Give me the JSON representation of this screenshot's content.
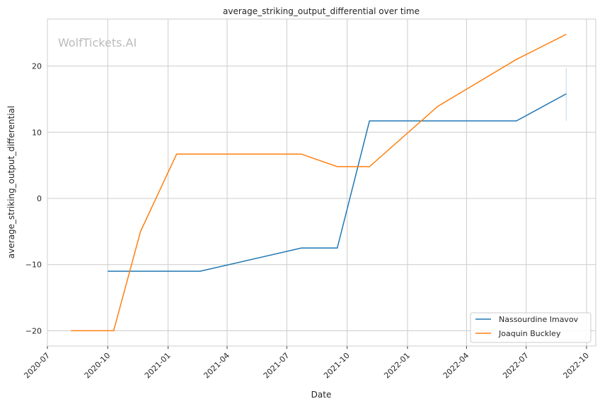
{
  "chart_data": {
    "type": "line",
    "title": "average_striking_output_differential over time",
    "xlabel": "Date",
    "ylabel": "average_striking_output_differential",
    "watermark": "WolfTickets.AI",
    "ylim": [
      -22.3,
      27.1
    ],
    "xlim": [
      "2020-07-01",
      "2022-10-15"
    ],
    "yticks": [
      -20,
      -10,
      0,
      10,
      20
    ],
    "xticks": [
      "2020-07",
      "2020-10",
      "2021-01",
      "2021-04",
      "2021-07",
      "2021-10",
      "2022-01",
      "2022-04",
      "2022-07",
      "2022-10"
    ],
    "grid": true,
    "legend_position": "bottom-right",
    "series": [
      {
        "name": "Nassourdine Imavov",
        "color": "#1f77b4",
        "x": [
          "2020-10-01",
          "2021-02-19",
          "2021-07-23",
          "2021-09-16",
          "2021-11-04",
          "2022-06-16",
          "2022-08-31"
        ],
        "y": [
          -11,
          -11,
          -7.5,
          -7.5,
          11.7,
          11.7,
          15.8
        ],
        "error_bar_last": [
          11.7,
          19.7
        ]
      },
      {
        "name": "Joaquin Buckley",
        "color": "#ff7f0e",
        "x": [
          "2020-08-06",
          "2020-10-10",
          "2020-11-20",
          "2021-01-14",
          "2021-07-23",
          "2021-09-16",
          "2021-11-04",
          "2022-02-16",
          "2022-06-16",
          "2022-08-31"
        ],
        "y": [
          -20,
          -20,
          -5,
          6.7,
          6.7,
          4.8,
          4.8,
          13.9,
          21.0,
          24.8
        ]
      }
    ]
  }
}
